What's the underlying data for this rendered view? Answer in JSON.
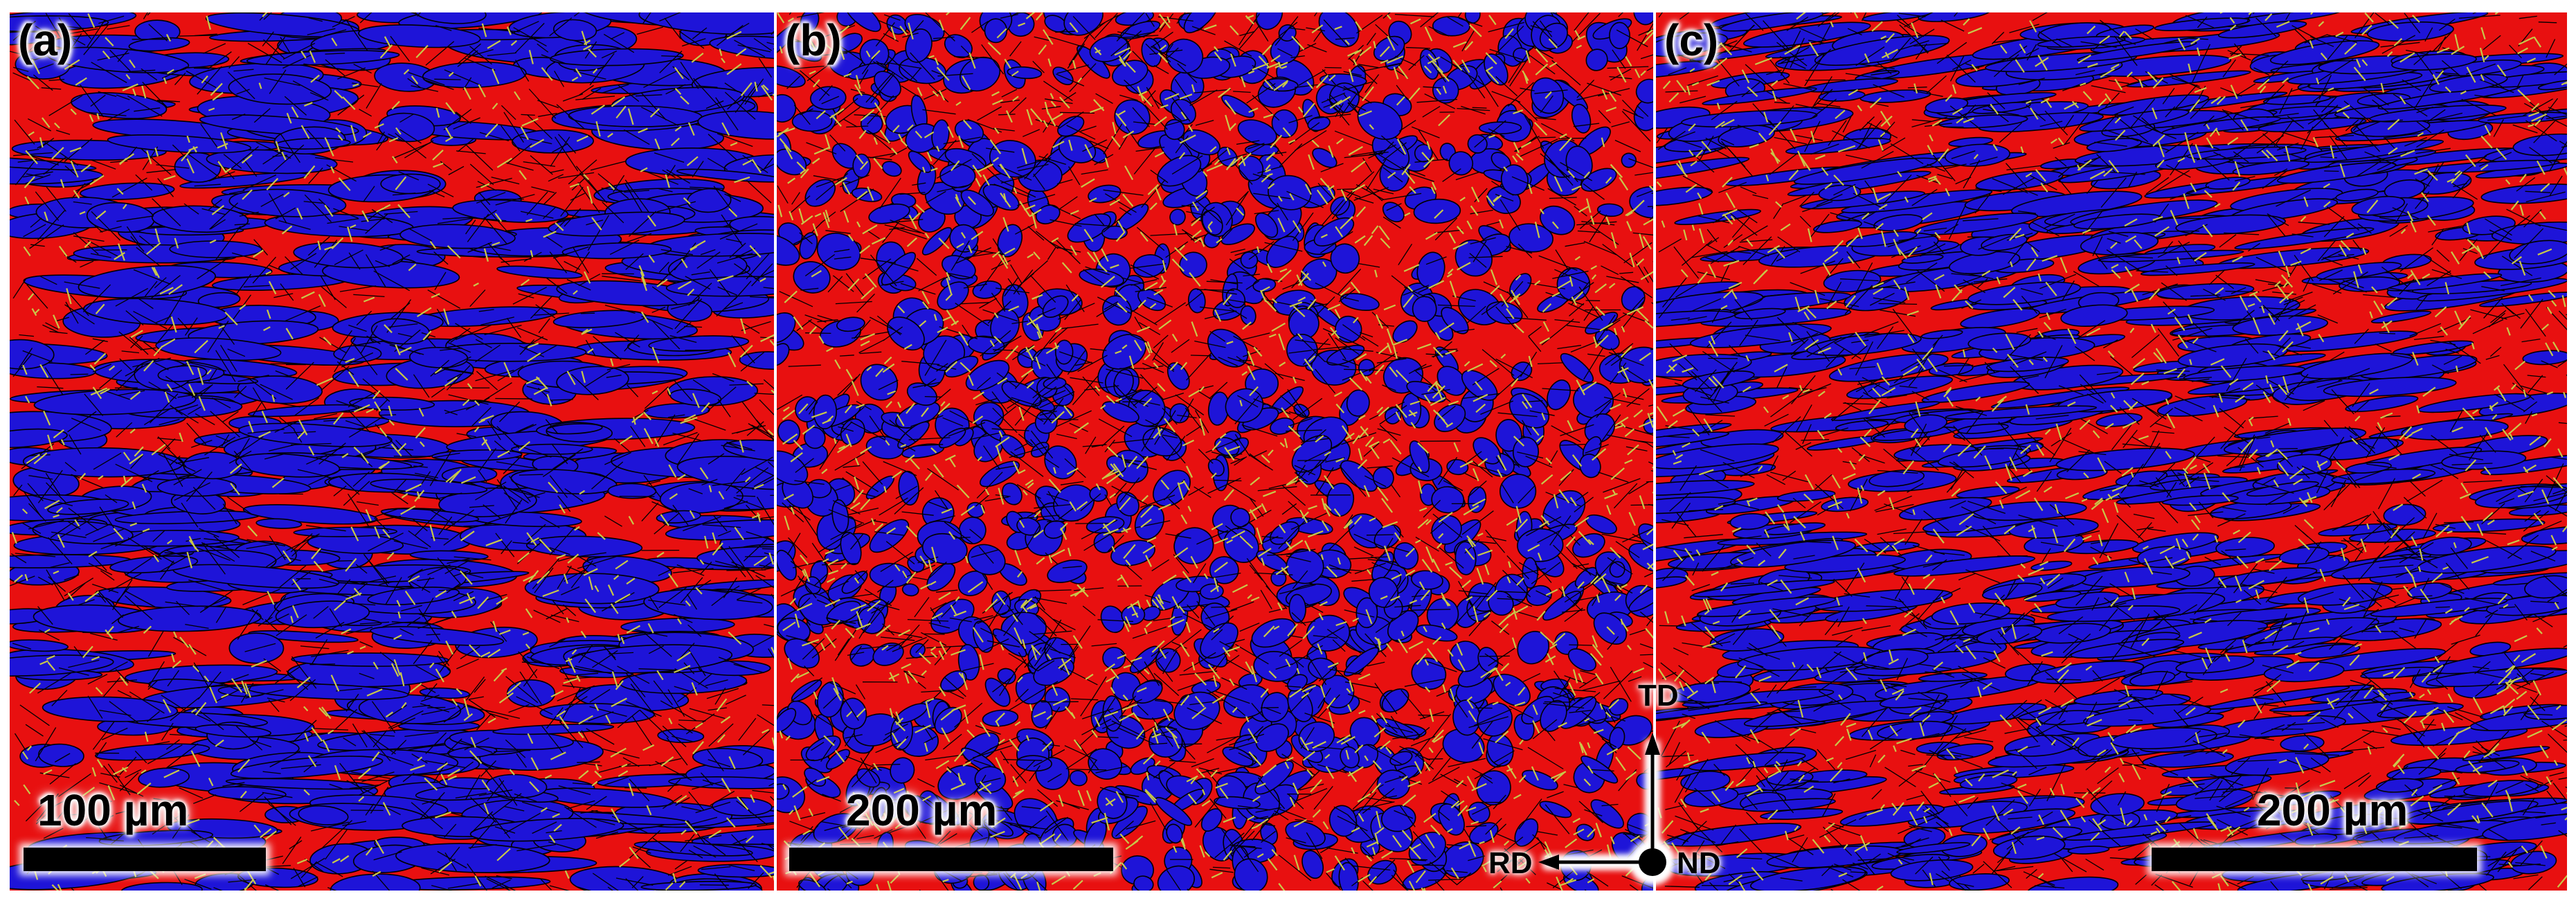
{
  "panels": [
    {
      "label": "(a)",
      "scale_bar": "100 µm"
    },
    {
      "label": "(b)",
      "scale_bar": "200 µm"
    },
    {
      "label": "(c)",
      "scale_bar": "200 µm"
    }
  ],
  "axes": {
    "td": "TD",
    "rd": "RD",
    "nd": "ND"
  },
  "colors": {
    "phase_red": "#e81010",
    "phase_blue": "#1e14d8",
    "boundary": "#000000",
    "twin": "#c8c84a"
  }
}
